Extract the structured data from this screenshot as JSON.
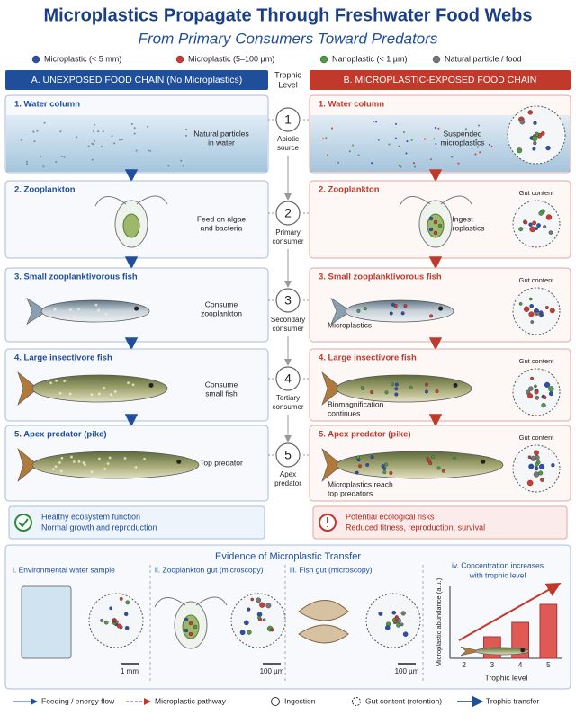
{
  "header": {
    "title": "Microplastics Propagate Through Freshwater Food Webs",
    "subtitle": "From Primary Consumers Toward Predators"
  },
  "legend": [
    "Microplastic (< 5 mm)",
    "Microplastic (5–100 µm)",
    "Nanoplastic (< 1 µm)",
    "Natural particle / food"
  ],
  "left": {
    "title": "A. UNEXPOSED FOOD CHAIN (No Microplastics)",
    "rows": [
      {
        "label": "1.  Water column",
        "note": [
          "Natural particles",
          "in water"
        ]
      },
      {
        "label": "2.  Zooplankton",
        "note": [
          "Feed on algae",
          "and bacteria"
        ]
      },
      {
        "label": "3.  Small zooplanktivorous fish",
        "note": [
          "Consume",
          "zooplankton"
        ]
      },
      {
        "label": "4.  Large insectivore fish",
        "note": [
          "Consume",
          "small fish"
        ]
      },
      {
        "label": "5.  Apex predator (pike)",
        "note": [
          "Top predator"
        ]
      }
    ],
    "outcome": [
      "Healthy ecosystem function",
      "Normal growth and reproduction"
    ]
  },
  "middle": {
    "title": [
      "Trophic",
      "Level"
    ],
    "levels": [
      {
        "number": "1",
        "lines": [
          "Abiotic",
          "source"
        ]
      },
      {
        "number": "2",
        "lines": [
          "Primary",
          "consumer"
        ]
      },
      {
        "number": "3",
        "lines": [
          "Secondary",
          "consumer"
        ]
      },
      {
        "number": "4",
        "lines": [
          "Tertiary",
          "consumer"
        ]
      },
      {
        "number": "5",
        "lines": [
          "Apex",
          "predator"
        ]
      }
    ]
  },
  "right": {
    "title": "B. MICROPLASTIC-EXPOSED FOOD CHAIN",
    "rows": [
      {
        "label": "1.  Water column",
        "note": [
          "Suspended",
          "microplastics"
        ]
      },
      {
        "label": "2.  Zooplankton",
        "note": [
          "Ingest",
          "microplastics"
        ],
        "inset": "Gut content"
      },
      {
        "label": "3.  Small zooplanktivorous fish",
        "note": [
          "Microplastics"
        ],
        "inset": "Gut content"
      },
      {
        "label": "4.  Large insectivore fish",
        "note": [
          "Biomagnification",
          "continues"
        ],
        "inset": "Gut content"
      },
      {
        "label": "5.  Apex predator (pike)",
        "note": [
          "Microplastics reach",
          "top predators"
        ],
        "inset": "Gut content"
      }
    ],
    "outcome": [
      "Potential ecological risks",
      "Reduced fitness, reproduction, survival"
    ]
  },
  "evidence": {
    "title": "Evidence of Microplastic Transfer",
    "panels": [
      {
        "label": "i.  Environmental water sample",
        "scale": "1 mm"
      },
      {
        "label": "ii.  Zooplankton gut (microscopy)",
        "scale": "100 µm"
      },
      {
        "label": "iii.  Fish gut (microscopy)",
        "scale": "100 µm"
      }
    ],
    "chart": {
      "type": "bar",
      "title": [
        "iv.  Concentration increases",
        "with trophic level"
      ],
      "x_label": "Trophic level",
      "y_label": "Microplastic abundance (a.u.)",
      "x": [
        2,
        3,
        4,
        5
      ],
      "values": [
        null,
        3,
        5,
        7.5
      ],
      "ylim": [
        0,
        10
      ],
      "color": "#e05a55"
    }
  },
  "footer": [
    "Feeding / energy flow",
    "Microplastic pathway",
    "Ingestion",
    "Gut content (retention)",
    "Trophic transfer"
  ]
}
